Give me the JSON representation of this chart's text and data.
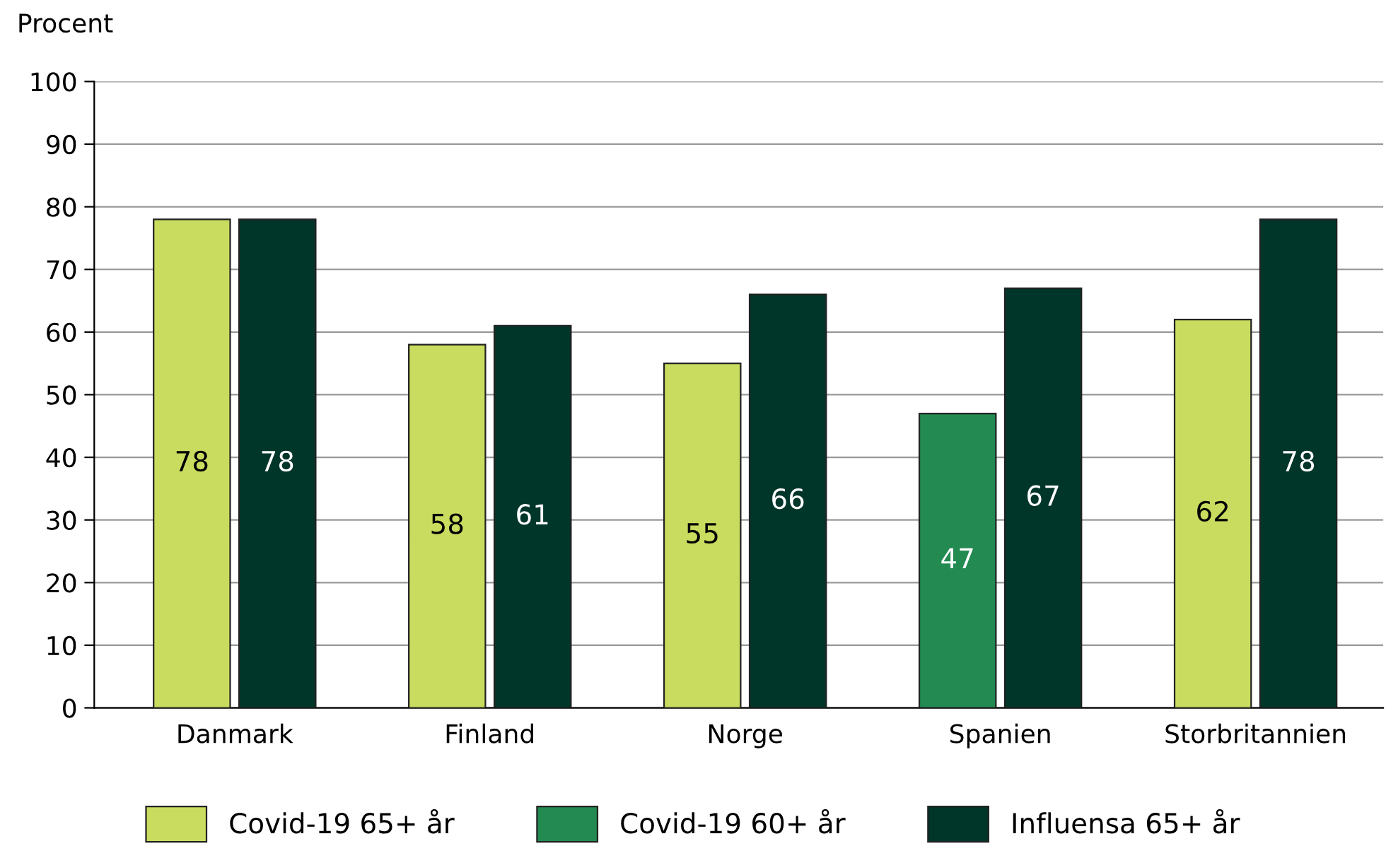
{
  "chart_data": {
    "type": "bar",
    "ylabel": "Procent",
    "categories": [
      "Danmark",
      "Finland",
      "Norge",
      "Spanien",
      "Storbritannien"
    ],
    "series": [
      {
        "name": "Covid-19 65+ år",
        "color": "#c9dc5f",
        "values": [
          78,
          58,
          55,
          null,
          62
        ]
      },
      {
        "name": "Covid-19 60+ år",
        "color": "#238a52",
        "values": [
          null,
          null,
          null,
          47,
          null
        ]
      },
      {
        "name": "Influensa 65+ år",
        "color": "#00352a",
        "values": [
          78,
          61,
          66,
          67,
          78
        ]
      }
    ],
    "ylim": [
      0,
      100
    ],
    "yticks": [
      0,
      10,
      20,
      30,
      40,
      50,
      60,
      70,
      80,
      90,
      100
    ],
    "grid": "y",
    "legend": "bottom",
    "data_labels": true
  }
}
